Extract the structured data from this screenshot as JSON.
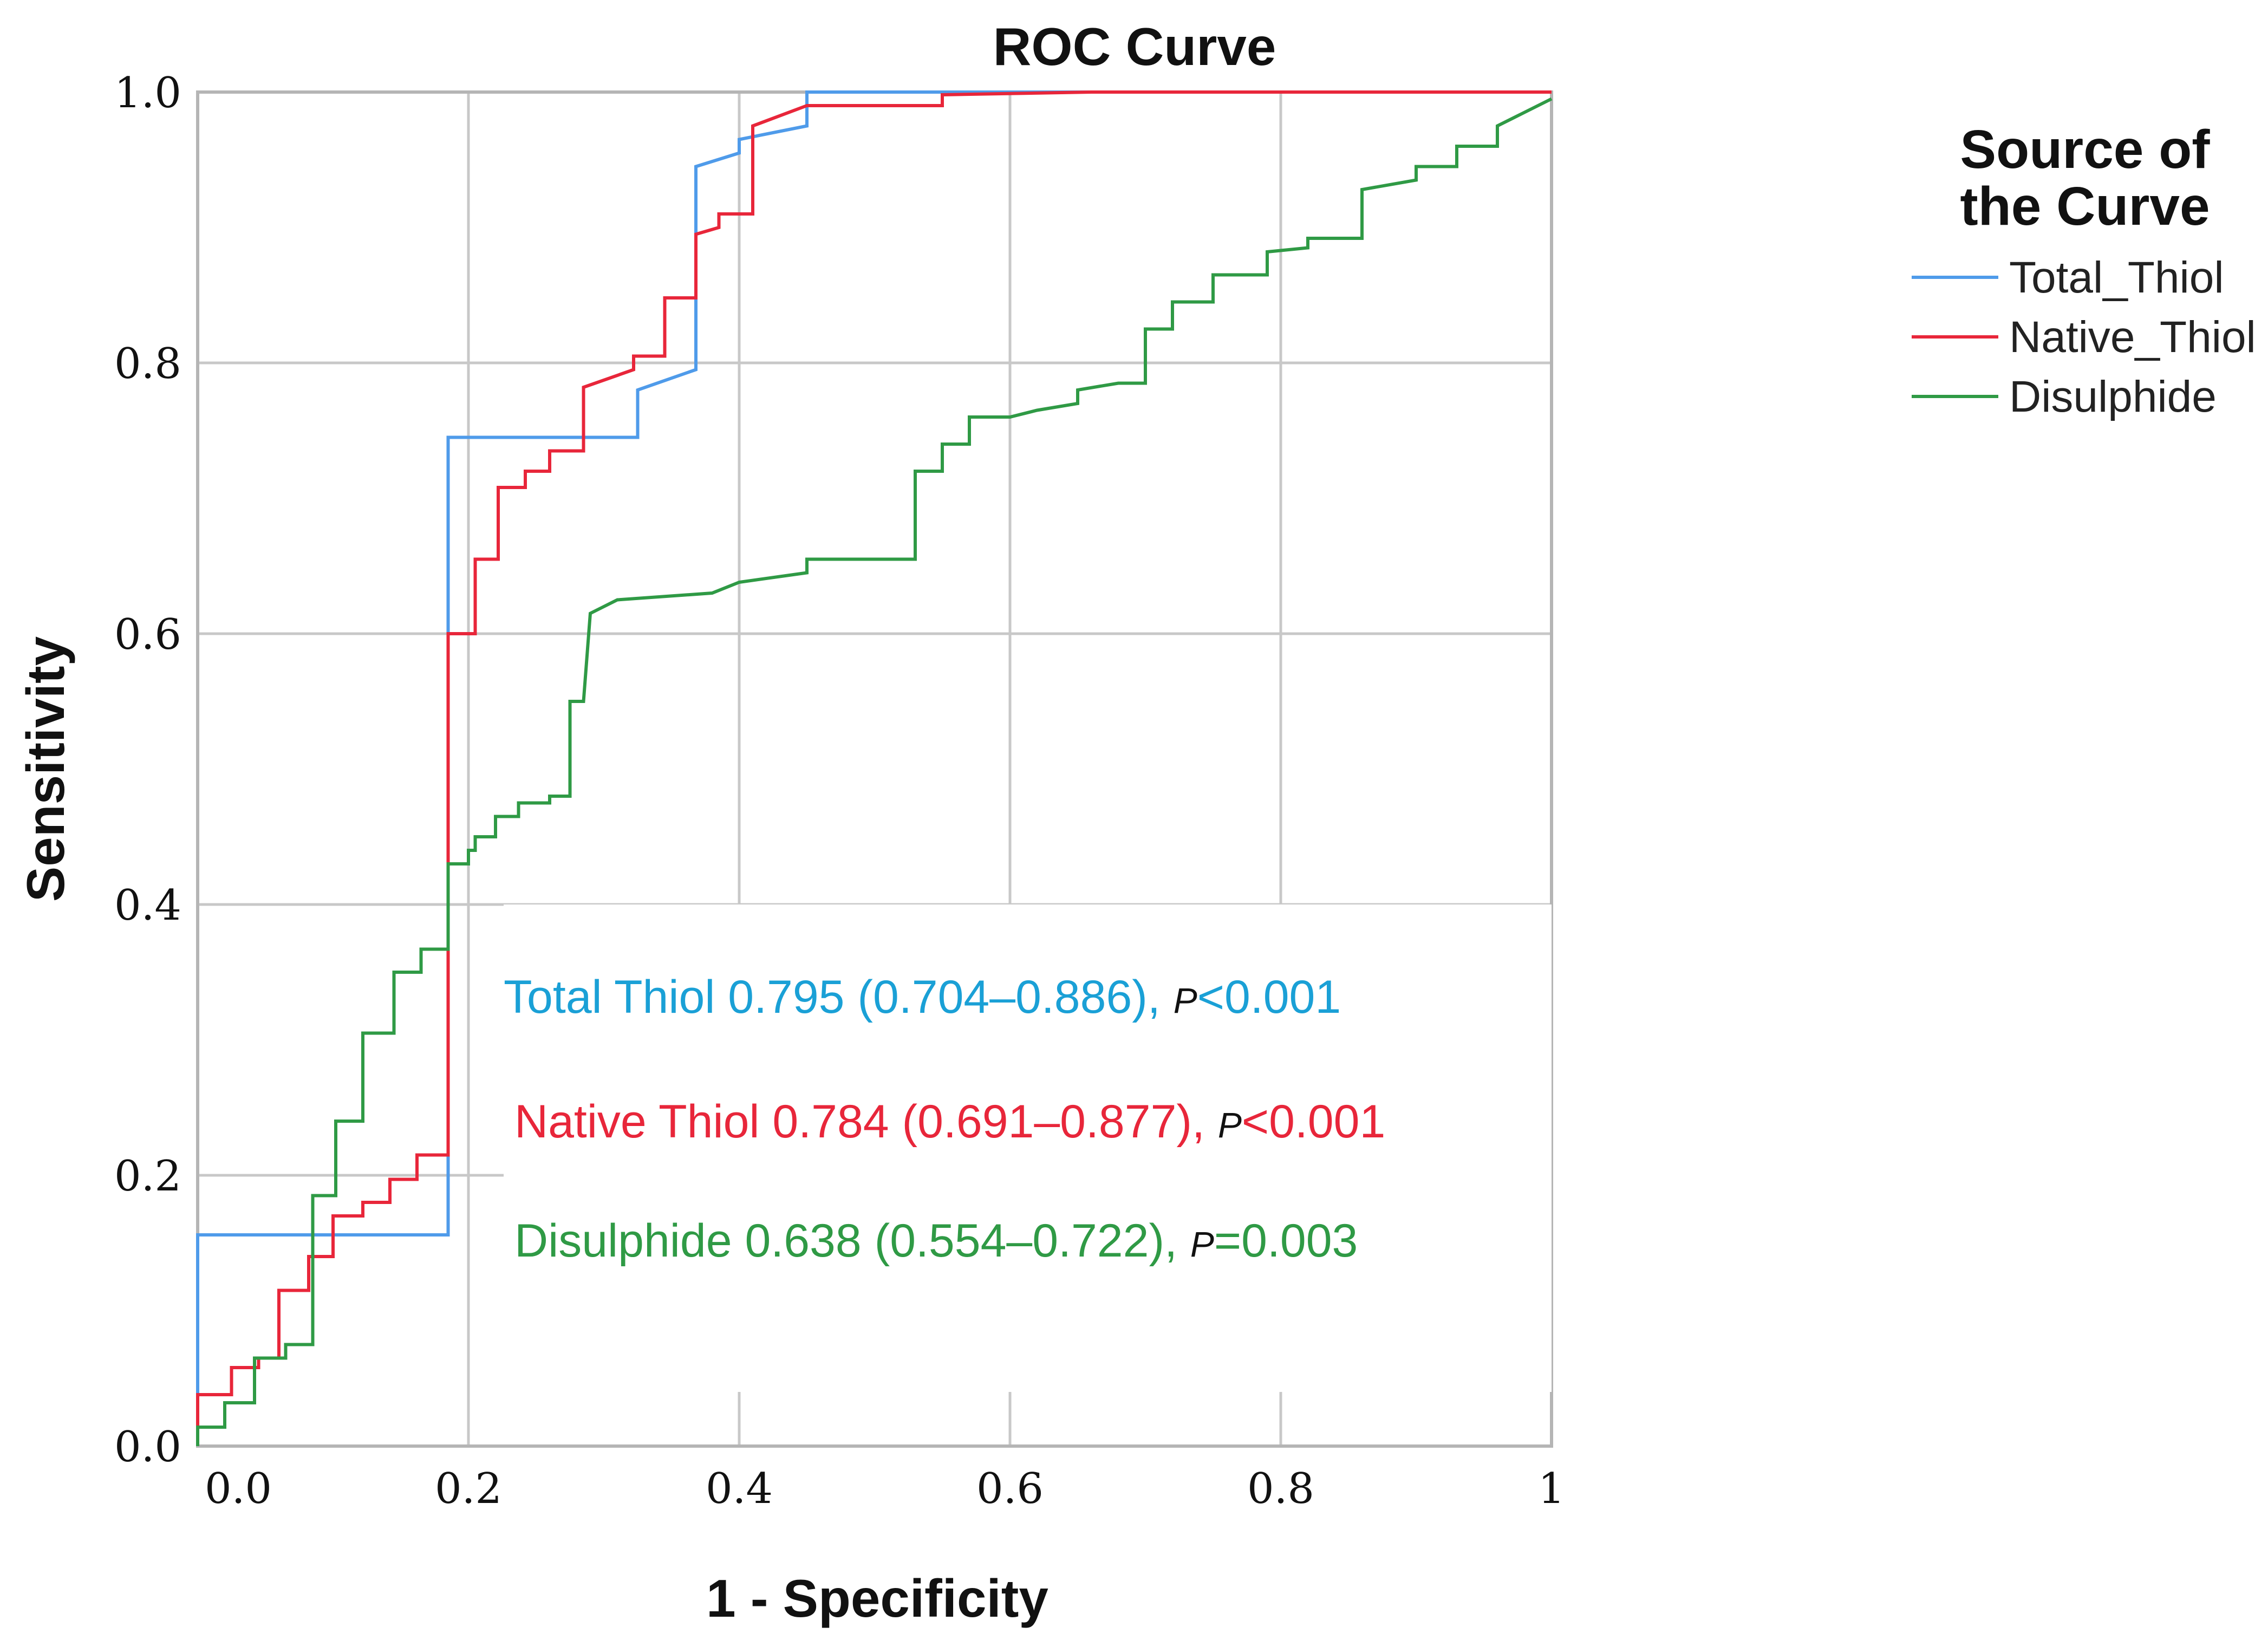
{
  "chart_data": {
    "type": "line",
    "title": "ROC Curve",
    "xlabel": "1 - Specificity",
    "ylabel": "Sensitivity",
    "xlim": [
      0,
      1
    ],
    "ylim": [
      0,
      1
    ],
    "x_ticks": [
      {
        "value": 0.0,
        "label": "0.0"
      },
      {
        "value": 0.2,
        "label": "0.2"
      },
      {
        "value": 0.4,
        "label": "0.4"
      },
      {
        "value": 0.6,
        "label": "0.6"
      },
      {
        "value": 0.8,
        "label": "0.8"
      },
      {
        "value": 1.0,
        "label": "1"
      }
    ],
    "y_ticks": [
      {
        "value": 0.0,
        "label": "0.0"
      },
      {
        "value": 0.2,
        "label": "0.2"
      },
      {
        "value": 0.4,
        "label": "0.4"
      },
      {
        "value": 0.6,
        "label": "0.6"
      },
      {
        "value": 0.8,
        "label": "0.8"
      },
      {
        "value": 1.0,
        "label": "1.0"
      }
    ],
    "grid": true,
    "legend": {
      "title_lines": [
        "Source of",
        "the Curve"
      ],
      "position": "right"
    },
    "series": [
      {
        "name": "Total_Thiol",
        "color": "#4f9bea",
        "points": [
          [
            0,
            0
          ],
          [
            0,
            0.156
          ],
          [
            0.185,
            0.156
          ],
          [
            0.185,
            0.745
          ],
          [
            0.325,
            0.745
          ],
          [
            0.325,
            0.78
          ],
          [
            0.368,
            0.795
          ],
          [
            0.368,
            0.945
          ],
          [
            0.4,
            0.955
          ],
          [
            0.4,
            0.965
          ],
          [
            0.45,
            0.975
          ],
          [
            0.45,
            1.0
          ],
          [
            1.0,
            1.0
          ]
        ]
      },
      {
        "name": "Native_Thiol",
        "color": "#e8263a",
        "points": [
          [
            0,
            0
          ],
          [
            0,
            0.038
          ],
          [
            0.025,
            0.038
          ],
          [
            0.025,
            0.058
          ],
          [
            0.045,
            0.058
          ],
          [
            0.045,
            0.065
          ],
          [
            0.06,
            0.065
          ],
          [
            0.06,
            0.115
          ],
          [
            0.082,
            0.115
          ],
          [
            0.082,
            0.14
          ],
          [
            0.1,
            0.14
          ],
          [
            0.1,
            0.17
          ],
          [
            0.122,
            0.17
          ],
          [
            0.122,
            0.18
          ],
          [
            0.142,
            0.18
          ],
          [
            0.142,
            0.197
          ],
          [
            0.162,
            0.197
          ],
          [
            0.162,
            0.215
          ],
          [
            0.185,
            0.215
          ],
          [
            0.185,
            0.6
          ],
          [
            0.205,
            0.6
          ],
          [
            0.205,
            0.655
          ],
          [
            0.222,
            0.655
          ],
          [
            0.222,
            0.708
          ],
          [
            0.242,
            0.708
          ],
          [
            0.242,
            0.72
          ],
          [
            0.26,
            0.72
          ],
          [
            0.26,
            0.735
          ],
          [
            0.285,
            0.735
          ],
          [
            0.285,
            0.782
          ],
          [
            0.322,
            0.795
          ],
          [
            0.322,
            0.805
          ],
          [
            0.345,
            0.805
          ],
          [
            0.345,
            0.848
          ],
          [
            0.368,
            0.848
          ],
          [
            0.368,
            0.895
          ],
          [
            0.385,
            0.9
          ],
          [
            0.385,
            0.91
          ],
          [
            0.41,
            0.91
          ],
          [
            0.41,
            0.975
          ],
          [
            0.45,
            0.99
          ],
          [
            0.55,
            0.99
          ],
          [
            0.55,
            0.998
          ],
          [
            0.66,
            1.0
          ],
          [
            1.0,
            1.0
          ]
        ]
      },
      {
        "name": "Disulphide",
        "color": "#2f9a45",
        "points": [
          [
            0,
            0
          ],
          [
            0,
            0.014
          ],
          [
            0.02,
            0.014
          ],
          [
            0.02,
            0.032
          ],
          [
            0.042,
            0.032
          ],
          [
            0.042,
            0.065
          ],
          [
            0.065,
            0.065
          ],
          [
            0.065,
            0.075
          ],
          [
            0.085,
            0.075
          ],
          [
            0.085,
            0.185
          ],
          [
            0.102,
            0.185
          ],
          [
            0.102,
            0.24
          ],
          [
            0.122,
            0.24
          ],
          [
            0.122,
            0.305
          ],
          [
            0.145,
            0.305
          ],
          [
            0.145,
            0.35
          ],
          [
            0.165,
            0.35
          ],
          [
            0.165,
            0.367
          ],
          [
            0.185,
            0.367
          ],
          [
            0.185,
            0.43
          ],
          [
            0.2,
            0.43
          ],
          [
            0.2,
            0.44
          ],
          [
            0.205,
            0.44
          ],
          [
            0.205,
            0.45
          ],
          [
            0.22,
            0.45
          ],
          [
            0.22,
            0.465
          ],
          [
            0.237,
            0.465
          ],
          [
            0.237,
            0.475
          ],
          [
            0.26,
            0.475
          ],
          [
            0.26,
            0.48
          ],
          [
            0.275,
            0.48
          ],
          [
            0.275,
            0.55
          ],
          [
            0.285,
            0.55
          ],
          [
            0.29,
            0.615
          ],
          [
            0.31,
            0.625
          ],
          [
            0.38,
            0.63
          ],
          [
            0.4,
            0.638
          ],
          [
            0.45,
            0.645
          ],
          [
            0.45,
            0.655
          ],
          [
            0.53,
            0.655
          ],
          [
            0.53,
            0.72
          ],
          [
            0.55,
            0.72
          ],
          [
            0.55,
            0.74
          ],
          [
            0.57,
            0.74
          ],
          [
            0.57,
            0.76
          ],
          [
            0.6,
            0.76
          ],
          [
            0.62,
            0.765
          ],
          [
            0.65,
            0.77
          ],
          [
            0.65,
            0.78
          ],
          [
            0.68,
            0.785
          ],
          [
            0.7,
            0.785
          ],
          [
            0.7,
            0.825
          ],
          [
            0.72,
            0.825
          ],
          [
            0.72,
            0.845
          ],
          [
            0.75,
            0.845
          ],
          [
            0.75,
            0.865
          ],
          [
            0.79,
            0.865
          ],
          [
            0.79,
            0.882
          ],
          [
            0.82,
            0.885
          ],
          [
            0.82,
            0.892
          ],
          [
            0.86,
            0.892
          ],
          [
            0.86,
            0.928
          ],
          [
            0.9,
            0.935
          ],
          [
            0.9,
            0.945
          ],
          [
            0.93,
            0.945
          ],
          [
            0.93,
            0.96
          ],
          [
            0.96,
            0.96
          ],
          [
            0.96,
            0.975
          ],
          [
            0.98,
            0.985
          ],
          [
            1.0,
            0.995
          ]
        ]
      }
    ],
    "annotations": [
      {
        "label": "Total Thiol",
        "auc": "0.795",
        "ci": "(0.704–0.886),",
        "p_symbol": "P",
        "p_text": "<0.001",
        "color": "#1aa0d6"
      },
      {
        "label": "Native Thiol",
        "auc": "0.784",
        "ci": "(0.691–0.877),",
        "p_symbol": "P",
        "p_text": "<0.001",
        "color": "#e8263a"
      },
      {
        "label": "Disulphide",
        "auc": "0.638",
        "ci": "(0.554–0.722),",
        "p_symbol": "P",
        "p_text": "=0.003",
        "color": "#2f9a45"
      }
    ]
  }
}
